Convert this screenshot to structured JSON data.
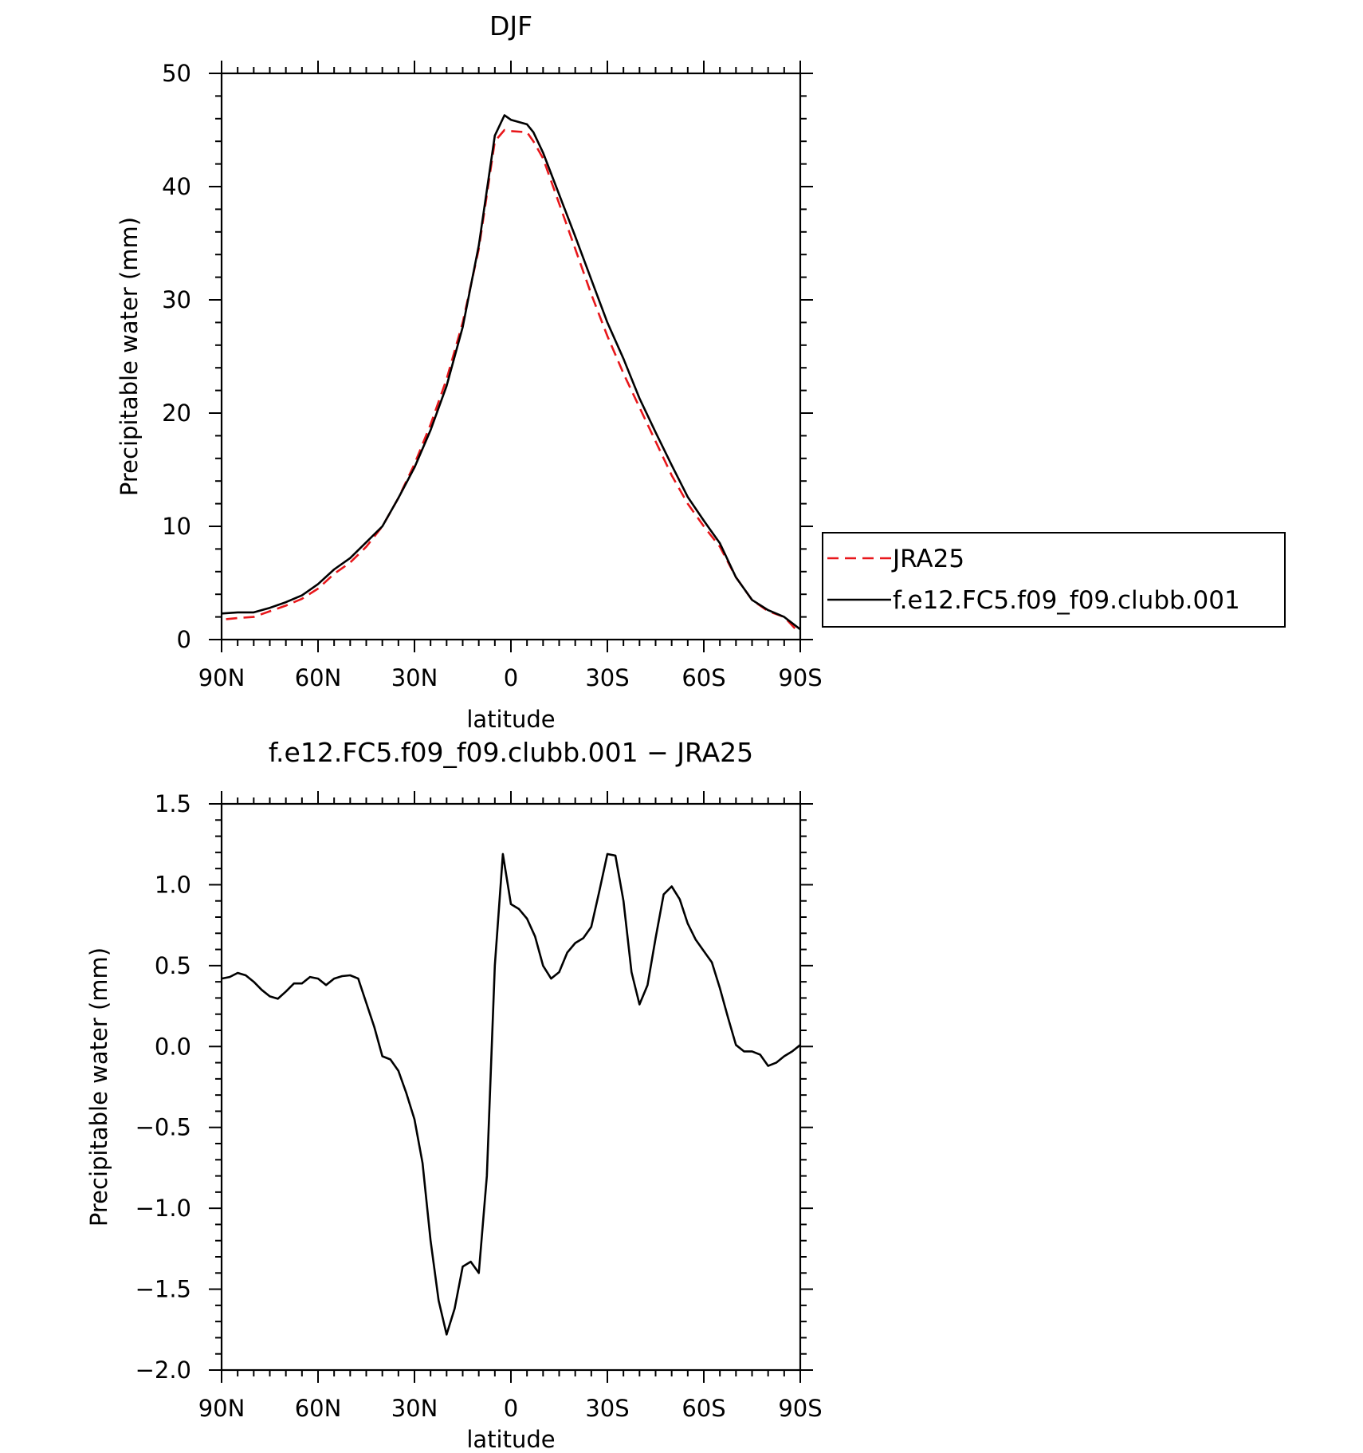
{
  "chart_data": [
    {
      "type": "line",
      "title": "DJF",
      "xlabel": "latitude",
      "ylabel": "Precipitable water (mm)",
      "xlim": [
        90,
        -90
      ],
      "ylim": [
        0,
        50
      ],
      "xticks": [
        90,
        60,
        30,
        0,
        -30,
        -60,
        -90
      ],
      "xtick_labels": [
        "90N",
        "60N",
        "30N",
        "0",
        "30S",
        "60S",
        "90S"
      ],
      "yticks": [
        0,
        10,
        20,
        30,
        40,
        50
      ],
      "ytick_labels": [
        "0",
        "10",
        "20",
        "30",
        "40",
        "50"
      ],
      "grid": false,
      "legend": "right",
      "series": [
        {
          "name": "JRA25",
          "color": "#e8171b",
          "dash": "dashed",
          "points": [
            [
              88.6,
              1.8
            ],
            [
              85,
              1.9
            ],
            [
              80,
              2.0
            ],
            [
              75,
              2.5
            ],
            [
              70,
              3.0
            ],
            [
              65,
              3.6
            ],
            [
              60,
              4.5
            ],
            [
              55,
              5.8
            ],
            [
              50,
              6.8
            ],
            [
              45,
              8.2
            ],
            [
              40,
              10.0
            ],
            [
              35,
              12.5
            ],
            [
              30,
              15.5
            ],
            [
              25,
              19.0
            ],
            [
              20,
              23.0
            ],
            [
              15,
              28.0
            ],
            [
              10,
              34.5
            ],
            [
              5,
              44.0
            ],
            [
              2,
              45.0
            ],
            [
              0,
              44.9
            ],
            [
              -5,
              44.8
            ],
            [
              -7,
              44.0
            ],
            [
              -10,
              42.5
            ],
            [
              -15,
              38.5
            ],
            [
              -20,
              34.5
            ],
            [
              -25,
              30.5
            ],
            [
              -30,
              26.8
            ],
            [
              -35,
              23.5
            ],
            [
              -40,
              20.5
            ],
            [
              -45,
              17.5
            ],
            [
              -50,
              14.5
            ],
            [
              -55,
              12.0
            ],
            [
              -60,
              10.0
            ],
            [
              -65,
              8.2
            ],
            [
              -70,
              5.5
            ],
            [
              -75,
              3.5
            ],
            [
              -80,
              2.5
            ],
            [
              -85,
              2.0
            ],
            [
              -88.6,
              0.9
            ]
          ]
        },
        {
          "name": "f.e12.FC5.f09_f09.clubb.001",
          "color": "#000000",
          "dash": "solid",
          "points": [
            [
              90,
              2.3
            ],
            [
              85,
              2.4
            ],
            [
              80,
              2.4
            ],
            [
              75,
              2.8
            ],
            [
              70,
              3.3
            ],
            [
              65,
              3.9
            ],
            [
              60,
              4.9
            ],
            [
              55,
              6.2
            ],
            [
              50,
              7.2
            ],
            [
              45,
              8.6
            ],
            [
              40,
              10.0
            ],
            [
              35,
              12.5
            ],
            [
              30,
              15.2
            ],
            [
              25,
              18.5
            ],
            [
              20,
              22.4
            ],
            [
              15,
              27.6
            ],
            [
              10,
              34.8
            ],
            [
              5,
              44.5
            ],
            [
              2,
              46.3
            ],
            [
              0,
              45.9
            ],
            [
              -5,
              45.5
            ],
            [
              -7,
              44.8
            ],
            [
              -10,
              43.0
            ],
            [
              -15,
              39.3
            ],
            [
              -20,
              35.6
            ],
            [
              -25,
              31.8
            ],
            [
              -30,
              28.0
            ],
            [
              -35,
              24.8
            ],
            [
              -40,
              21.3
            ],
            [
              -45,
              18.3
            ],
            [
              -50,
              15.4
            ],
            [
              -55,
              12.6
            ],
            [
              -60,
              10.5
            ],
            [
              -65,
              8.5
            ],
            [
              -70,
              5.5
            ],
            [
              -75,
              3.5
            ],
            [
              -80,
              2.6
            ],
            [
              -85,
              2.0
            ],
            [
              -90,
              0.9
            ]
          ]
        }
      ]
    },
    {
      "type": "line",
      "title": "f.e12.FC5.f09_f09.clubb.001 − JRA25",
      "xlabel": "latitude",
      "ylabel": "Precipitable water (mm)",
      "xlim": [
        90,
        -90
      ],
      "ylim": [
        -2.0,
        1.5
      ],
      "xticks": [
        90,
        60,
        30,
        0,
        -30,
        -60,
        -90
      ],
      "xtick_labels": [
        "90N",
        "60N",
        "30N",
        "0",
        "30S",
        "60S",
        "90S"
      ],
      "yticks": [
        -2.0,
        -1.5,
        -1.0,
        -0.5,
        0.0,
        0.5,
        1.0,
        1.5
      ],
      "ytick_labels": [
        "−2.0",
        "−1.5",
        "−1.0",
        "−0.5",
        "0.0",
        "0.5",
        "1.0",
        "1.5"
      ],
      "grid": false,
      "series": [
        {
          "color": "#000000",
          "dash": "solid",
          "points": [
            [
              90,
              0.42
            ],
            [
              87.5,
              0.43
            ],
            [
              85,
              0.455
            ],
            [
              82.5,
              0.44
            ],
            [
              80,
              0.4
            ],
            [
              77.5,
              0.35
            ],
            [
              75,
              0.31
            ],
            [
              72.5,
              0.295
            ],
            [
              70,
              0.34
            ],
            [
              67.5,
              0.39
            ],
            [
              65,
              0.39
            ],
            [
              62.5,
              0.43
            ],
            [
              60,
              0.42
            ],
            [
              57.5,
              0.38
            ],
            [
              55,
              0.42
            ],
            [
              52.5,
              0.435
            ],
            [
              50,
              0.44
            ],
            [
              47.5,
              0.42
            ],
            [
              45,
              0.27
            ],
            [
              42.5,
              0.12
            ],
            [
              40,
              -0.06
            ],
            [
              37.5,
              -0.08
            ],
            [
              35,
              -0.15
            ],
            [
              32.5,
              -0.29
            ],
            [
              30,
              -0.45
            ],
            [
              27.5,
              -0.72
            ],
            [
              25,
              -1.2
            ],
            [
              22.5,
              -1.57
            ],
            [
              20,
              -1.78
            ],
            [
              17.5,
              -1.62
            ],
            [
              15,
              -1.36
            ],
            [
              12.5,
              -1.33
            ],
            [
              10,
              -1.4
            ],
            [
              7.5,
              -0.8
            ],
            [
              5,
              0.5
            ],
            [
              2.5,
              1.19
            ],
            [
              0,
              0.88
            ],
            [
              -2.5,
              0.85
            ],
            [
              -5,
              0.79
            ],
            [
              -7.5,
              0.68
            ],
            [
              -10,
              0.5
            ],
            [
              -12.5,
              0.42
            ],
            [
              -15,
              0.46
            ],
            [
              -17.5,
              0.58
            ],
            [
              -20,
              0.64
            ],
            [
              -22.5,
              0.67
            ],
            [
              -25,
              0.74
            ],
            [
              -27.5,
              0.96
            ],
            [
              -30,
              1.19
            ],
            [
              -32.5,
              1.18
            ],
            [
              -35,
              0.9
            ],
            [
              -37.5,
              0.46
            ],
            [
              -40,
              0.26
            ],
            [
              -42.5,
              0.38
            ],
            [
              -45,
              0.67
            ],
            [
              -47.5,
              0.94
            ],
            [
              -50,
              0.99
            ],
            [
              -52.5,
              0.91
            ],
            [
              -55,
              0.76
            ],
            [
              -57.5,
              0.66
            ],
            [
              -60,
              0.59
            ],
            [
              -62.5,
              0.52
            ],
            [
              -65,
              0.36
            ],
            [
              -67.5,
              0.18
            ],
            [
              -70,
              0.01
            ],
            [
              -72.5,
              -0.03
            ],
            [
              -75,
              -0.03
            ],
            [
              -77.5,
              -0.05
            ],
            [
              -80,
              -0.12
            ],
            [
              -82.5,
              -0.1
            ],
            [
              -85,
              -0.06
            ],
            [
              -87.5,
              -0.03
            ],
            [
              -90,
              0.01
            ]
          ]
        }
      ]
    }
  ]
}
